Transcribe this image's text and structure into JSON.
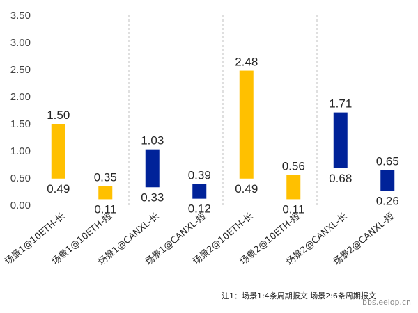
{
  "chart_data": {
    "type": "bar",
    "subtype": "floating-range",
    "categories": [
      "场景1@10ETH-长",
      "场景1@10ETH-短",
      "场景1@CANXL-长",
      "场景1@CANXL-短",
      "场景2@10ETH-长",
      "场景2@10ETH-短",
      "场景2@CANXL-长",
      "场景2@CANXL-短"
    ],
    "series": [
      {
        "name": "min",
        "values": [
          0.49,
          0.11,
          0.33,
          0.12,
          0.49,
          0.11,
          0.68,
          0.26
        ]
      },
      {
        "name": "max",
        "values": [
          1.5,
          0.35,
          1.03,
          0.39,
          2.48,
          0.56,
          1.71,
          0.65
        ]
      }
    ],
    "bar_colors": [
      "#FFC000",
      "#FFC000",
      "#002299",
      "#002299",
      "#FFC000",
      "#FFC000",
      "#002299",
      "#002299"
    ],
    "labels_low": [
      "0.49",
      "0.11",
      "0.33",
      "0.12",
      "0.49",
      "0.11",
      "0.68",
      "0.26"
    ],
    "labels_high": [
      "1.50",
      "0.35",
      "1.03",
      "0.39",
      "2.48",
      "0.56",
      "1.71",
      "0.65"
    ],
    "y_ticks": [
      "0.00",
      "0.50",
      "1.00",
      "1.50",
      "2.00",
      "2.50",
      "3.00",
      "3.50"
    ],
    "ylim": [
      0,
      3.5
    ],
    "title": "",
    "xlabel": "",
    "ylabel": "",
    "grid": false
  },
  "note": "注1：场景1:4条周期报文 场景2:6条周期报文",
  "watermark": "bbs.eelop.cn"
}
